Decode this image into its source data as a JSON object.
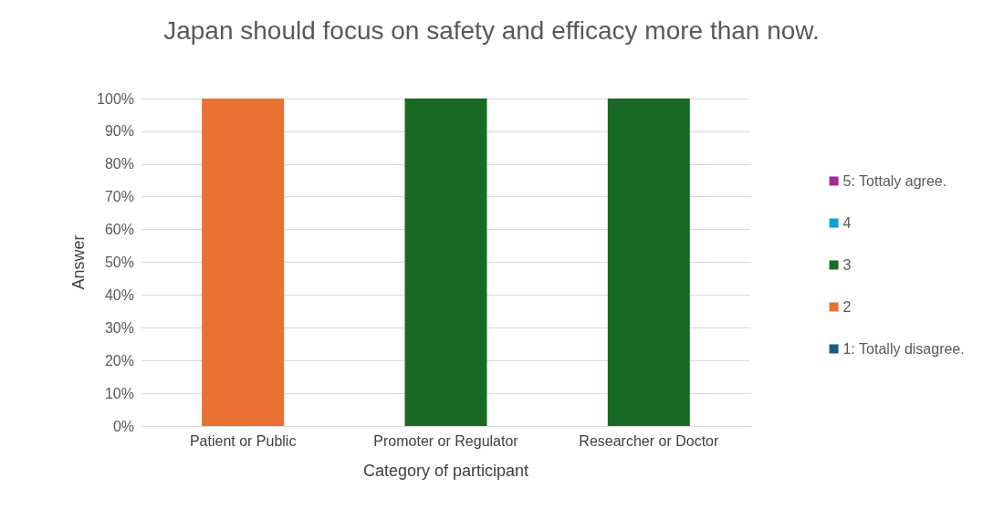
{
  "chart_data": {
    "type": "bar",
    "title": "Japan should focus on safety and efficacy more than now.",
    "xlabel": "Category of participant",
    "ylabel": "Answer",
    "categories": [
      "Patient or Public",
      "Promoter or Regulator",
      "Researcher or Doctor"
    ],
    "stacked": true,
    "series": [
      {
        "name": "1: Totally disagree.",
        "color": "#156082",
        "values": [
          0,
          0,
          0
        ]
      },
      {
        "name": "2",
        "color": "#e97132",
        "values": [
          100,
          0,
          0
        ]
      },
      {
        "name": "3",
        "color": "#196b24",
        "values": [
          0,
          100,
          100
        ]
      },
      {
        "name": "4",
        "color": "#0f9ed5",
        "values": [
          0,
          0,
          0
        ]
      },
      {
        "name": "5: Tottaly agree.",
        "color": "#a02b93",
        "values": [
          0,
          0,
          0
        ]
      }
    ],
    "ylim": [
      0,
      100
    ],
    "yticks": [
      {
        "value": 0,
        "label": "0%"
      },
      {
        "value": 10,
        "label": "10%"
      },
      {
        "value": 20,
        "label": "20%"
      },
      {
        "value": 30,
        "label": "30%"
      },
      {
        "value": 40,
        "label": "40%"
      },
      {
        "value": 50,
        "label": "50%"
      },
      {
        "value": 60,
        "label": "60%"
      },
      {
        "value": 70,
        "label": "70%"
      },
      {
        "value": 80,
        "label": "80%"
      },
      {
        "value": 90,
        "label": "90%"
      },
      {
        "value": 100,
        "label": "100%"
      }
    ],
    "grid": "y",
    "legend": "right"
  }
}
